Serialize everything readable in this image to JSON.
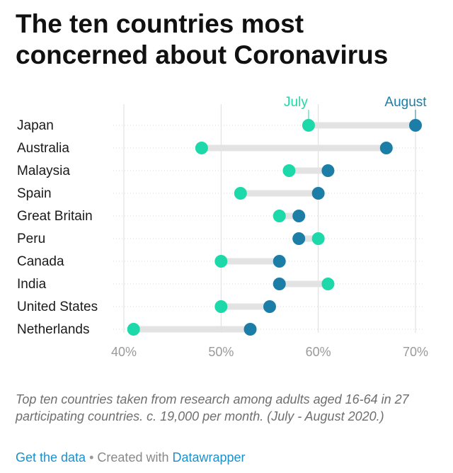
{
  "title": "The ten countries most concerned about Coronavirus",
  "notes": "Top ten countries taken from research among adults aged 16-64 in 27 participating countries. c. 19,000 per month. (July - August 2020.)",
  "footer": {
    "get_data_label": "Get the data",
    "separator": "•",
    "created_with_label": "Created with",
    "tool_label": "Datawrapper"
  },
  "colors": {
    "july": "#1dd8a8",
    "august": "#1c7ea6",
    "connector": "#e3e3e3",
    "grid": "#dddddd",
    "tick_text": "#9a9a9a",
    "category_text": "#1a1a1a"
  },
  "chart_data": {
    "type": "dot-range",
    "title": "The ten countries most concerned about Coronavirus",
    "xlabel": "",
    "ylabel": "",
    "xlim": [
      40,
      70
    ],
    "x_ticks": [
      "40%",
      "50%",
      "60%",
      "70%"
    ],
    "x_tick_values": [
      40,
      50,
      60,
      70
    ],
    "grid": true,
    "legend_placement": "top, above first row next to its dots",
    "categories": [
      "Japan",
      "Australia",
      "Malaysia",
      "Spain",
      "Great Britain",
      "Peru",
      "Canada",
      "India",
      "United States",
      "Netherlands"
    ],
    "series": [
      {
        "name": "July",
        "values": [
          59,
          48,
          57,
          52,
          56,
          60,
          50,
          61,
          50,
          41
        ]
      },
      {
        "name": "August",
        "values": [
          70,
          67,
          61,
          60,
          58,
          58,
          56,
          56,
          55,
          53
        ]
      }
    ]
  }
}
